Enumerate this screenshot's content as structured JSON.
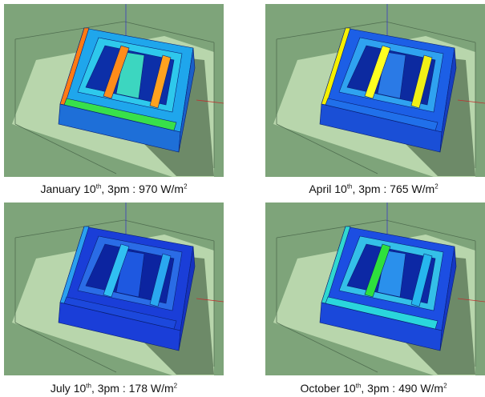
{
  "panels": [
    {
      "month": "January 10",
      "suffix": "th",
      "time_text": ", 3pm : 970 W/m",
      "exp": "2",
      "irradiance": 970,
      "colors": {
        "top": "#1fa6ec",
        "inner": "#2ec8ec",
        "leftStrip": "#ff7a14",
        "front": "#1e6fd8",
        "side": "#1a5fc8",
        "bottomRim": "#38e04a",
        "finL": "#ff8c1a",
        "finR": "#ffa21f",
        "center": "#3cd6c0",
        "floor": "#0c2fa8"
      }
    },
    {
      "month": "April 10",
      "suffix": "th",
      "time_text": ", 3pm : 765 W/m",
      "exp": "2",
      "irradiance": 765,
      "colors": {
        "top": "#1c5fe6",
        "inner": "#2fa2f0",
        "leftStrip": "#f5f000",
        "front": "#1a4fd6",
        "side": "#163ec0",
        "bottomRim": "#2070ea",
        "finL": "#ffff20",
        "finR": "#f0f016",
        "center": "#2a7ae6",
        "floor": "#0c2aa0"
      }
    },
    {
      "month": "July 10",
      "suffix": "th",
      "time_text": ", 3pm : 178 W/m",
      "exp": "2",
      "irradiance": 178,
      "colors": {
        "top": "#1a3ed8",
        "inner": "#2a6ce6",
        "leftStrip": "#2aa0f0",
        "front": "#1a3ed8",
        "side": "#1632c0",
        "bottomRim": "#1c48dc",
        "finL": "#30c0f2",
        "finR": "#2aa8f0",
        "center": "#1e58e0",
        "floor": "#0c24a0"
      }
    },
    {
      "month": "October 10",
      "suffix": "th",
      "time_text": ", 3pm : 490 W/m",
      "exp": "2",
      "irradiance": 490,
      "colors": {
        "top": "#1c4ee2",
        "inner": "#34c0e8",
        "leftStrip": "#30d8d0",
        "front": "#1a48da",
        "side": "#1638c4",
        "bottomRim": "#2ad6dc",
        "finL": "#2ee03c",
        "finR": "#26b6ee",
        "center": "#2a90ec",
        "floor": "#0c28a4"
      }
    }
  ]
}
